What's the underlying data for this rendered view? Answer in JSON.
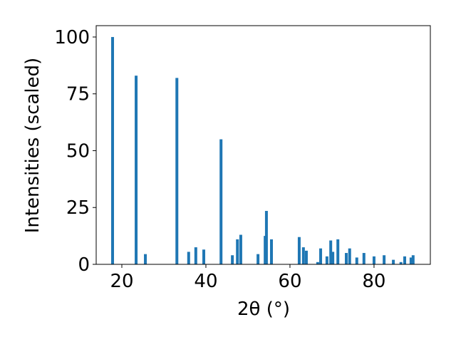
{
  "chart_data": {
    "type": "bar",
    "xlabel": "2θ (°)",
    "ylabel": "Intensities (scaled)",
    "x": [
      17.8,
      23.4,
      25.6,
      33.1,
      35.9,
      37.6,
      39.5,
      43.6,
      46.3,
      47.5,
      48.3,
      52.4,
      54.1,
      54.4,
      55.6,
      62.2,
      63.2,
      63.9,
      66.6,
      67.3,
      68.8,
      69.7,
      70.2,
      71.4,
      73.4,
      74.2,
      75.9,
      77.6,
      80.0,
      82.4,
      84.6,
      86.4,
      87.3,
      88.8,
      89.3
    ],
    "values": [
      100,
      83,
      4.5,
      82,
      5.5,
      7.5,
      6.5,
      55,
      4,
      11,
      13,
      4.5,
      12.5,
      23.5,
      11,
      12,
      7.5,
      6,
      1,
      7,
      3.5,
      10.5,
      5.5,
      11,
      5,
      7,
      3,
      5,
      3.5,
      4,
      2,
      1,
      3.5,
      3,
      4
    ],
    "color": "#1f77b4",
    "xlim": [
      13.9,
      93.4
    ],
    "xticks": [
      20,
      40,
      60,
      80
    ],
    "ylim": [
      0,
      105
    ],
    "yticks": [
      0,
      25,
      50,
      75,
      100
    ]
  }
}
